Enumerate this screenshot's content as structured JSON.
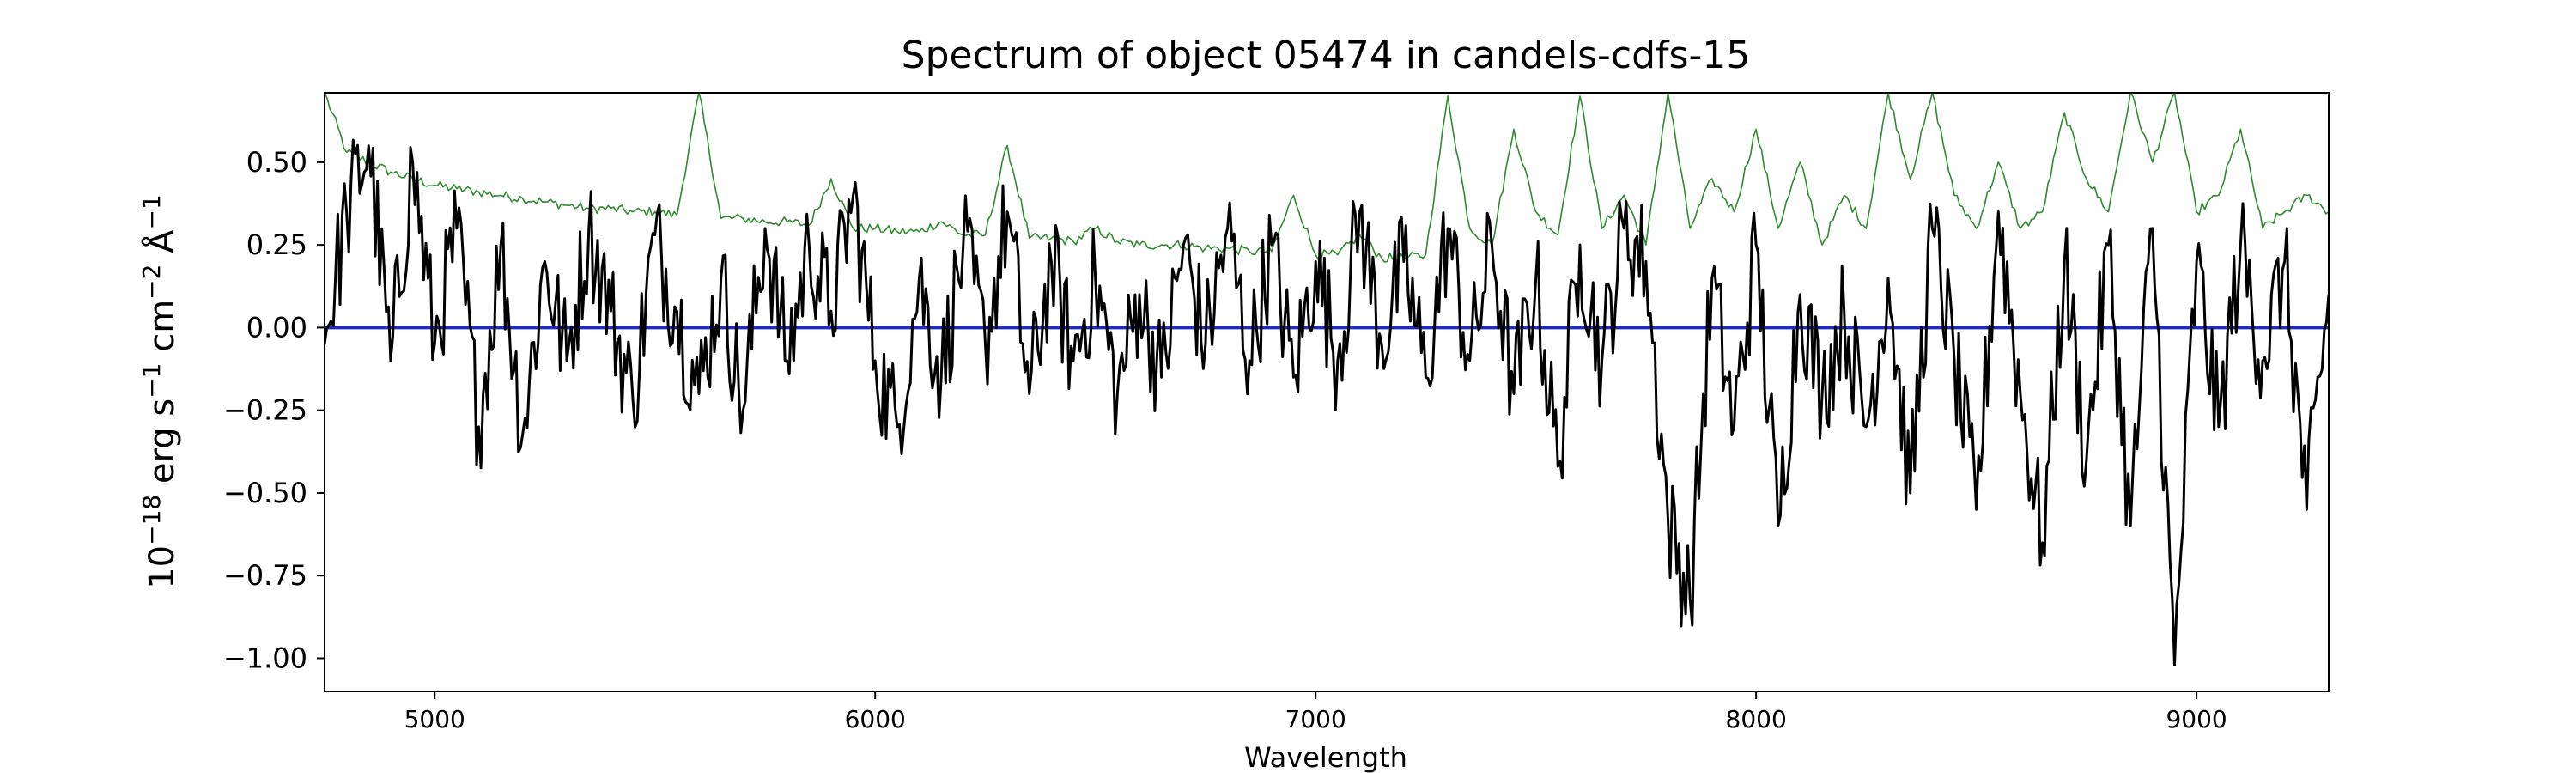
{
  "chart_data": {
    "type": "line",
    "title": "Spectrum of object 05474 in candels-cdfs-15",
    "xlabel": "Wavelength",
    "ylabel": {
      "base": "10",
      "exp": "−18",
      "rest": " erg s",
      "s_exp": "−1",
      "cm": " cm",
      "cm_exp": "−2",
      "ang": " Å",
      "ang_exp": "−1"
    },
    "xlim": [
      4750,
      9300
    ],
    "ylim": [
      -1.1,
      0.71
    ],
    "xticks": [
      5000,
      6000,
      7000,
      8000,
      9000
    ],
    "xtick_labels": [
      "5000",
      "6000",
      "7000",
      "8000",
      "9000"
    ],
    "yticks": [
      0.5,
      0.25,
      0.0,
      -0.25,
      -0.5,
      -0.75,
      -1.0
    ],
    "ytick_labels": [
      "0.50",
      "0.25",
      "0.00",
      "−0.25",
      "−0.50",
      "−0.75",
      "−1.00"
    ],
    "grid": false,
    "series": [
      {
        "role": "flux",
        "color": "#000000",
        "sample_step": 50,
        "x": [
          4750,
          4800,
          4850,
          4900,
          4950,
          5000,
          5050,
          5100,
          5150,
          5200,
          5250,
          5300,
          5350,
          5400,
          5450,
          5500,
          5550,
          5600,
          5650,
          5700,
          5750,
          5800,
          5850,
          5900,
          5950,
          6000,
          6050,
          6100,
          6150,
          6200,
          6250,
          6300,
          6350,
          6400,
          6450,
          6500,
          6550,
          6600,
          6650,
          6700,
          6750,
          6800,
          6850,
          6900,
          6950,
          7000,
          7050,
          7100,
          7150,
          7200,
          7250,
          7300,
          7350,
          7400,
          7450,
          7500,
          7550,
          7600,
          7650,
          7700,
          7750,
          7800,
          7850,
          7900,
          7950,
          8000,
          8050,
          8100,
          8150,
          8200,
          8250,
          8300,
          8350,
          8400,
          8450,
          8500,
          8550,
          8600,
          8650,
          8700,
          8750,
          8800,
          8850,
          8900,
          8950,
          9000,
          9050,
          9100,
          9150,
          9200,
          9250,
          9300
        ],
        "y": [
          -0.05,
          0.35,
          0.55,
          -0.1,
          0.5,
          -0.05,
          0.3,
          -0.3,
          0.25,
          -0.32,
          0.2,
          -0.1,
          0.3,
          0.05,
          -0.22,
          0.28,
          0.05,
          -0.2,
          0.15,
          -0.25,
          0.3,
          -0.1,
          0.25,
          0.05,
          0.4,
          -0.1,
          -0.3,
          0.15,
          -0.15,
          0.25,
          -0.05,
          0.35,
          -0.2,
          0.2,
          -0.1,
          0.15,
          -0.2,
          0.1,
          -0.15,
          0.25,
          -0.05,
          0.3,
          -0.1,
          0.25,
          -0.15,
          0.2,
          -0.1,
          0.35,
          -0.05,
          0.2,
          -0.15,
          0.3,
          -0.1,
          0.25,
          -0.2,
          0.15,
          -0.42,
          0.25,
          -0.1,
          0.3,
          0.2,
          -0.58,
          -0.82,
          0.15,
          -0.3,
          0.25,
          -0.6,
          0.1,
          -0.2,
          0.05,
          -0.3,
          0.15,
          -0.5,
          0.3,
          -0.1,
          -0.55,
          0.35,
          -0.2,
          -0.65,
          0.2,
          -0.4,
          0.25,
          -0.6,
          0.3,
          -1.02,
          0.2,
          -0.3,
          0.25,
          -0.1,
          0.2,
          -0.55,
          0.1
        ]
      },
      {
        "role": "error",
        "color": "#2e8b2e",
        "sample_step": 50,
        "x": [
          4750,
          4800,
          4850,
          4900,
          4950,
          5000,
          5050,
          5100,
          5150,
          5200,
          5250,
          5300,
          5350,
          5400,
          5450,
          5500,
          5550,
          5600,
          5650,
          5700,
          5750,
          5800,
          5850,
          5900,
          5950,
          6000,
          6050,
          6100,
          6150,
          6200,
          6250,
          6300,
          6350,
          6400,
          6450,
          6500,
          6550,
          6600,
          6650,
          6700,
          6750,
          6800,
          6850,
          6900,
          6950,
          7000,
          7050,
          7100,
          7150,
          7200,
          7250,
          7300,
          7350,
          7400,
          7450,
          7500,
          7550,
          7600,
          7650,
          7700,
          7750,
          7800,
          7850,
          7900,
          7950,
          8000,
          8050,
          8100,
          8150,
          8200,
          8250,
          8300,
          8350,
          8400,
          8450,
          8500,
          8550,
          8600,
          8650,
          8700,
          8750,
          8800,
          8850,
          8900,
          8950,
          9000,
          9050,
          9100,
          9150,
          9200,
          9250,
          9300
        ],
        "y": [
          0.71,
          0.53,
          0.5,
          0.47,
          0.45,
          0.43,
          0.42,
          0.41,
          0.4,
          0.39,
          0.38,
          0.37,
          0.36,
          0.36,
          0.35,
          0.35,
          0.34,
          0.71,
          0.33,
          0.33,
          0.32,
          0.32,
          0.31,
          0.45,
          0.3,
          0.3,
          0.29,
          0.29,
          0.32,
          0.28,
          0.28,
          0.55,
          0.27,
          0.27,
          0.26,
          0.3,
          0.26,
          0.25,
          0.25,
          0.25,
          0.24,
          0.24,
          0.23,
          0.23,
          0.4,
          0.22,
          0.22,
          0.28,
          0.21,
          0.21,
          0.22,
          0.7,
          0.3,
          0.25,
          0.6,
          0.35,
          0.28,
          0.7,
          0.3,
          0.4,
          0.25,
          0.71,
          0.3,
          0.45,
          0.35,
          0.6,
          0.3,
          0.5,
          0.25,
          0.4,
          0.3,
          0.71,
          0.45,
          0.71,
          0.4,
          0.3,
          0.5,
          0.3,
          0.35,
          0.65,
          0.45,
          0.35,
          0.71,
          0.5,
          0.71,
          0.35,
          0.4,
          0.6,
          0.3,
          0.35,
          0.4,
          0.35
        ]
      },
      {
        "role": "zero",
        "color": "#1f2bbf",
        "x": [
          4750,
          9300
        ],
        "y": [
          0.0,
          0.0
        ]
      }
    ]
  }
}
